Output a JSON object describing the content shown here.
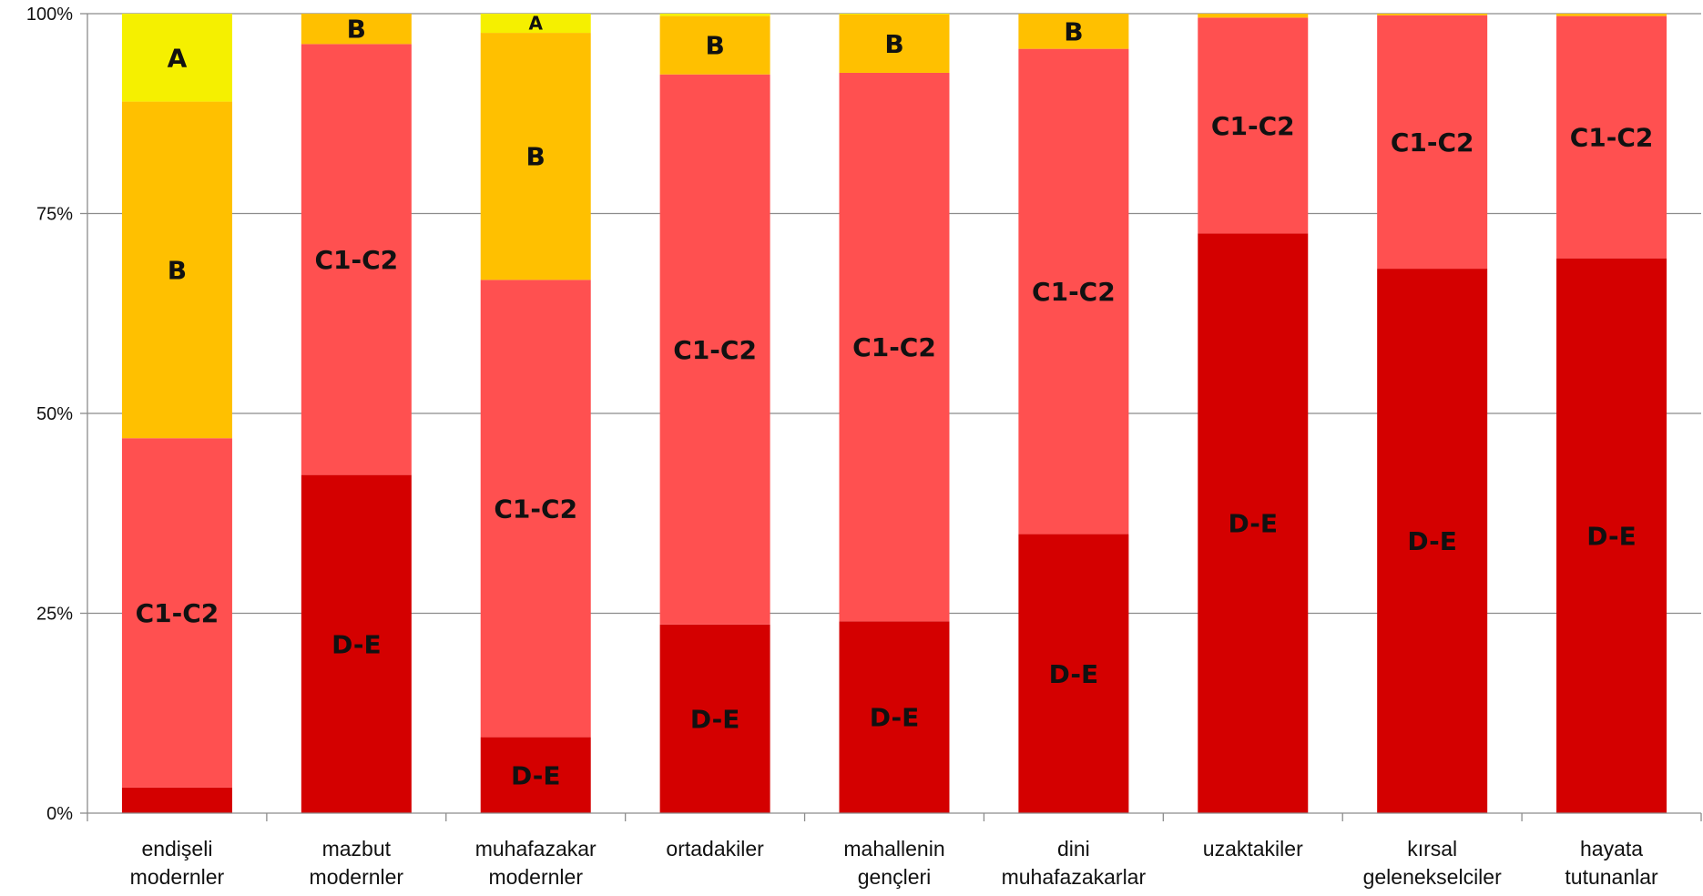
{
  "chart_data": {
    "type": "bar",
    "stacked": true,
    "percent": true,
    "categories": [
      [
        "endişeli",
        "modernler"
      ],
      [
        "mazbut",
        "modernler"
      ],
      [
        "muhafazakar",
        "modernler"
      ],
      [
        "ortadakiler"
      ],
      [
        "mahallenin",
        "gençleri"
      ],
      [
        "dini",
        "muhafazakarlar"
      ],
      [
        "uzaktakiler"
      ],
      [
        "kırsal",
        "gelenekselciler"
      ],
      [
        "hayata",
        "tutunanlar"
      ]
    ],
    "ylim": [
      0,
      100
    ],
    "yticks": [
      "0%",
      "25%",
      "50%",
      "75%",
      "100%"
    ],
    "ytick_values": [
      0,
      25,
      50,
      75,
      100
    ],
    "grid": true,
    "series": [
      {
        "name": "D-E",
        "color": "#d40000",
        "values": [
          3.2,
          42.3,
          9.5,
          23.6,
          24.0,
          34.9,
          72.5,
          68.1,
          69.4
        ]
      },
      {
        "name": "C1-C2",
        "color": "#ff5050",
        "values": [
          43.7,
          53.9,
          57.2,
          68.8,
          68.6,
          60.7,
          27.0,
          31.7,
          30.3
        ]
      },
      {
        "name": "B",
        "color": "#ffc000",
        "values": [
          42.1,
          3.8,
          30.9,
          7.3,
          7.3,
          4.4,
          0.5,
          0.2,
          0.3
        ]
      },
      {
        "name": "A",
        "color": "#f5f000",
        "values": [
          11.0,
          0,
          2.4,
          0.3,
          0.1,
          0,
          0,
          0,
          0
        ]
      }
    ],
    "labels": [
      [
        "",
        "C1-C2",
        "B",
        "A"
      ],
      [
        "D-E",
        "C1-C2",
        "B",
        ""
      ],
      [
        "D-E",
        "C1-C2",
        "B",
        "A"
      ],
      [
        "D-E",
        "C1-C2",
        "B",
        ""
      ],
      [
        "D-E",
        "C1-C2",
        "B",
        ""
      ],
      [
        "D-E",
        "C1-C2",
        "B",
        ""
      ],
      [
        "D-E",
        "C1-C2",
        "",
        ""
      ],
      [
        "D-E",
        "C1-C2",
        "",
        ""
      ],
      [
        "D-E",
        "C1-C2",
        "",
        ""
      ]
    ]
  }
}
